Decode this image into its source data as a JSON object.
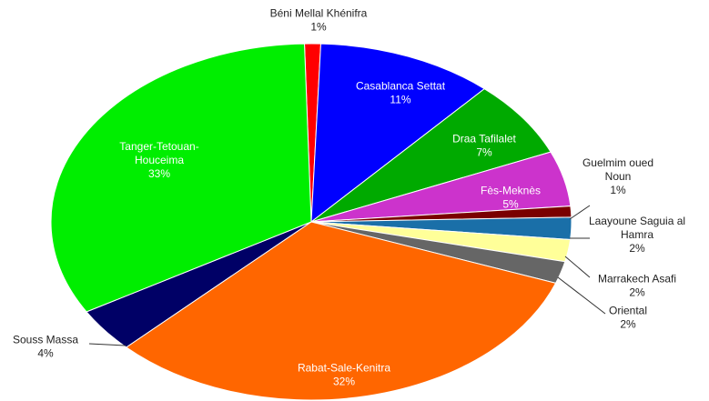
{
  "chart_data": {
    "type": "pie",
    "title": "",
    "legend": "none",
    "series": [
      {
        "values": [
          1,
          11,
          7,
          5,
          1,
          2,
          2,
          2,
          32,
          4,
          33
        ],
        "categories": [
          "Béni Mellal Khénifra",
          "Casablanca Settat",
          "Draa Tafilalet",
          "Fès-Meknès",
          "Guelmim oued Noun",
          "Laayoune Saguia al Hamra",
          "Marrakech Asafi",
          "Oriental",
          "Rabat-Sale-Kenitra",
          "Souss Massa",
          "Tanger-Tetouan-Houceima"
        ]
      }
    ],
    "slices": [
      {
        "label_lines": [
          "Béni Mellal Khénifra"
        ],
        "pct_label": "1%",
        "color": "#ff0000",
        "placement": "outside"
      },
      {
        "label_lines": [
          "Casablanca Settat"
        ],
        "pct_label": "11%",
        "color": "#0000ff",
        "placement": "inside"
      },
      {
        "label_lines": [
          "Draa Tafilalet"
        ],
        "pct_label": "7%",
        "color": "#00aa00",
        "placement": "inside"
      },
      {
        "label_lines": [
          "Fès-Meknès"
        ],
        "pct_label": "5%",
        "color": "#cc33cc",
        "placement": "inside"
      },
      {
        "label_lines": [
          "Guelmim  oued",
          "Noun"
        ],
        "pct_label": "1%",
        "color": "#7a0000",
        "placement": "outside"
      },
      {
        "label_lines": [
          "Laayoune Saguia al",
          "Hamra"
        ],
        "pct_label": "2%",
        "color": "#1a6fa8",
        "placement": "outside"
      },
      {
        "label_lines": [
          "Marrakech Asafi"
        ],
        "pct_label": "2%",
        "color": "#ffff99",
        "placement": "outside"
      },
      {
        "label_lines": [
          "Oriental"
        ],
        "pct_label": "2%",
        "color": "#666666",
        "placement": "outside"
      },
      {
        "label_lines": [
          "Rabat-Sale-Kenitra"
        ],
        "pct_label": "32%",
        "color": "#ff6600",
        "placement": "inside"
      },
      {
        "label_lines": [
          "Souss Massa"
        ],
        "pct_label": "4%",
        "color": "#000066",
        "placement": "outside"
      },
      {
        "label_lines": [
          "Tanger-Tetouan-",
          "Houceima"
        ],
        "pct_label": "33%",
        "color": "#00ee00",
        "placement": "inside"
      }
    ]
  }
}
